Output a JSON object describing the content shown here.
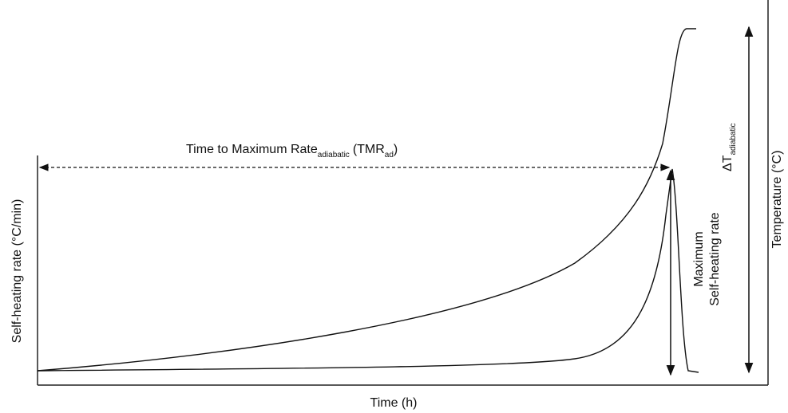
{
  "axes": {
    "x_label": "Time (h)",
    "y_left_label": "Self-heating rate (°C/min)",
    "y_right_label": "Temperature (°C)"
  },
  "annotations": {
    "tmr": {
      "text": "Time to Maximum Rate",
      "sub": "adiabatic",
      "text2": "(TMR",
      "sub2": "ad",
      "text3": ")"
    },
    "delta_t": {
      "text": "ΔT",
      "sub": "adiabatic"
    },
    "max_rate": {
      "line1": "Maximum",
      "line2": "Self-heating rate"
    }
  }
}
